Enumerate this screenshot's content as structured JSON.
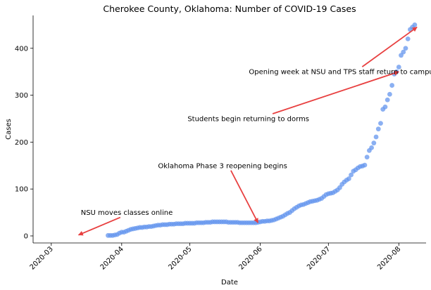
{
  "chart_data": {
    "type": "scatter",
    "title": "Cherokee County, Oklahoma: Number of COVID-19 Cases",
    "xlabel": "Date",
    "ylabel": "Cases",
    "xlim": [
      "2020-02-22",
      "2020-08-13"
    ],
    "ylim": [
      -15,
      470
    ],
    "x_ticks": [
      "2020-03",
      "2020-04",
      "2020-05",
      "2020-06",
      "2020-07",
      "2020-08"
    ],
    "y_ticks": [
      0,
      100,
      200,
      300,
      400
    ],
    "grid": false,
    "marker_color": "#6495ed",
    "arrow_color": "#e84040",
    "series": [
      {
        "points": [
          [
            "2020-03-26",
            1
          ],
          [
            "2020-03-27",
            1
          ],
          [
            "2020-03-28",
            1
          ],
          [
            "2020-03-29",
            2
          ],
          [
            "2020-03-30",
            3
          ],
          [
            "2020-03-31",
            6
          ],
          [
            "2020-04-01",
            8
          ],
          [
            "2020-04-02",
            8
          ],
          [
            "2020-04-03",
            10
          ],
          [
            "2020-04-04",
            12
          ],
          [
            "2020-04-05",
            14
          ],
          [
            "2020-04-06",
            15
          ],
          [
            "2020-04-07",
            16
          ],
          [
            "2020-04-08",
            17
          ],
          [
            "2020-04-09",
            18
          ],
          [
            "2020-04-10",
            18
          ],
          [
            "2020-04-11",
            19
          ],
          [
            "2020-04-12",
            19
          ],
          [
            "2020-04-13",
            20
          ],
          [
            "2020-04-14",
            20
          ],
          [
            "2020-04-15",
            21
          ],
          [
            "2020-04-16",
            22
          ],
          [
            "2020-04-17",
            23
          ],
          [
            "2020-04-18",
            23
          ],
          [
            "2020-04-19",
            24
          ],
          [
            "2020-04-20",
            24
          ],
          [
            "2020-04-21",
            24
          ],
          [
            "2020-04-22",
            25
          ],
          [
            "2020-04-23",
            25
          ],
          [
            "2020-04-24",
            25
          ],
          [
            "2020-04-25",
            26
          ],
          [
            "2020-04-26",
            26
          ],
          [
            "2020-04-27",
            26
          ],
          [
            "2020-04-28",
            26
          ],
          [
            "2020-04-29",
            27
          ],
          [
            "2020-04-30",
            27
          ],
          [
            "2020-05-01",
            27
          ],
          [
            "2020-05-02",
            27
          ],
          [
            "2020-05-03",
            27
          ],
          [
            "2020-05-04",
            28
          ],
          [
            "2020-05-05",
            28
          ],
          [
            "2020-05-06",
            28
          ],
          [
            "2020-05-07",
            28
          ],
          [
            "2020-05-08",
            29
          ],
          [
            "2020-05-09",
            29
          ],
          [
            "2020-05-10",
            29
          ],
          [
            "2020-05-11",
            30
          ],
          [
            "2020-05-12",
            30
          ],
          [
            "2020-05-13",
            30
          ],
          [
            "2020-05-14",
            30
          ],
          [
            "2020-05-15",
            30
          ],
          [
            "2020-05-16",
            30
          ],
          [
            "2020-05-17",
            30
          ],
          [
            "2020-05-18",
            29
          ],
          [
            "2020-05-19",
            29
          ],
          [
            "2020-05-20",
            29
          ],
          [
            "2020-05-21",
            29
          ],
          [
            "2020-05-22",
            29
          ],
          [
            "2020-05-23",
            28
          ],
          [
            "2020-05-24",
            28
          ],
          [
            "2020-05-25",
            28
          ],
          [
            "2020-05-26",
            28
          ],
          [
            "2020-05-27",
            28
          ],
          [
            "2020-05-28",
            28
          ],
          [
            "2020-05-29",
            28
          ],
          [
            "2020-05-30",
            28
          ],
          [
            "2020-05-31",
            29
          ],
          [
            "2020-06-01",
            30
          ],
          [
            "2020-06-02",
            31
          ],
          [
            "2020-06-03",
            31
          ],
          [
            "2020-06-04",
            32
          ],
          [
            "2020-06-05",
            32
          ],
          [
            "2020-06-06",
            33
          ],
          [
            "2020-06-07",
            34
          ],
          [
            "2020-06-08",
            36
          ],
          [
            "2020-06-09",
            38
          ],
          [
            "2020-06-10",
            40
          ],
          [
            "2020-06-11",
            42
          ],
          [
            "2020-06-12",
            45
          ],
          [
            "2020-06-13",
            48
          ],
          [
            "2020-06-14",
            50
          ],
          [
            "2020-06-15",
            54
          ],
          [
            "2020-06-16",
            58
          ],
          [
            "2020-06-17",
            61
          ],
          [
            "2020-06-18",
            64
          ],
          [
            "2020-06-19",
            66
          ],
          [
            "2020-06-20",
            67
          ],
          [
            "2020-06-21",
            69
          ],
          [
            "2020-06-22",
            71
          ],
          [
            "2020-06-23",
            73
          ],
          [
            "2020-06-24",
            74
          ],
          [
            "2020-06-25",
            75
          ],
          [
            "2020-06-26",
            76
          ],
          [
            "2020-06-27",
            78
          ],
          [
            "2020-06-28",
            80
          ],
          [
            "2020-06-29",
            84
          ],
          [
            "2020-06-30",
            88
          ],
          [
            "2020-07-01",
            90
          ],
          [
            "2020-07-02",
            91
          ],
          [
            "2020-07-03",
            92
          ],
          [
            "2020-07-04",
            95
          ],
          [
            "2020-07-05",
            98
          ],
          [
            "2020-07-06",
            103
          ],
          [
            "2020-07-07",
            110
          ],
          [
            "2020-07-08",
            115
          ],
          [
            "2020-07-09",
            119
          ],
          [
            "2020-07-10",
            122
          ],
          [
            "2020-07-11",
            130
          ],
          [
            "2020-07-12",
            138
          ],
          [
            "2020-07-13",
            141
          ],
          [
            "2020-07-14",
            145
          ],
          [
            "2020-07-15",
            148
          ],
          [
            "2020-07-16",
            149
          ],
          [
            "2020-07-17",
            151
          ],
          [
            "2020-07-18",
            168
          ],
          [
            "2020-07-19",
            182
          ],
          [
            "2020-07-20",
            188
          ],
          [
            "2020-07-21",
            198
          ],
          [
            "2020-07-22",
            211
          ],
          [
            "2020-07-23",
            228
          ],
          [
            "2020-07-24",
            240
          ],
          [
            "2020-07-25",
            270
          ],
          [
            "2020-07-26",
            275
          ],
          [
            "2020-07-27",
            290
          ],
          [
            "2020-07-28",
            302
          ],
          [
            "2020-07-29",
            321
          ],
          [
            "2020-07-30",
            345
          ],
          [
            "2020-07-31",
            350
          ],
          [
            "2020-08-01",
            360
          ],
          [
            "2020-08-02",
            385
          ],
          [
            "2020-08-03",
            392
          ],
          [
            "2020-08-04",
            400
          ],
          [
            "2020-08-05",
            420
          ],
          [
            "2020-08-06",
            440
          ],
          [
            "2020-08-07",
            445
          ],
          [
            "2020-08-08",
            450
          ]
        ]
      }
    ],
    "annotations": [
      {
        "text": "NSU moves classes online",
        "text_xy": [
          "2020-03-14",
          50
        ],
        "arrow_to": [
          "2020-03-13",
          2
        ]
      },
      {
        "text": "Oklahoma Phase 3 reopening begins",
        "text_xy": [
          "2020-04-17",
          150
        ],
        "arrow_to": [
          "2020-05-31",
          28
        ]
      },
      {
        "text": "Students begin returning to dorms",
        "text_xy": [
          "2020-04-30",
          250
        ],
        "arrow_to": [
          "2020-08-01",
          350
        ]
      },
      {
        "text": "Opening week at NSU and TPS staff return to campus",
        "text_xy": [
          "2020-05-27",
          350
        ],
        "arrow_to": [
          "2020-08-09",
          445
        ]
      }
    ]
  }
}
